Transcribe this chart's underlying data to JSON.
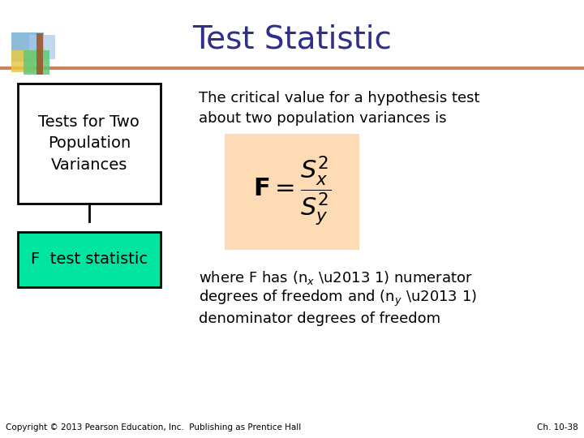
{
  "title": "Test Statistic",
  "title_color": "#2E2E8B",
  "title_fontsize": 28,
  "box1_text": "Tests for Two\nPopulation\nVariances",
  "box2_text": "F  test statistic",
  "box2_color": "#00E5A0",
  "right_text_line1": "The critical value for a hypothesis test",
  "right_text_line2": "about two population variances is",
  "formula_bg": "#FDDCB5",
  "header_line_color": "#C8845A",
  "bg_color": "#FFFFFF",
  "footer_text_left": "Copyright © 2013 Pearson Education, Inc.  Publishing as Prentice Hall",
  "footer_text_right": "Ch. 10-38",
  "icon_colors": [
    "#7BAFD4",
    "#A8C8E8",
    "#E8C84A",
    "#60C878",
    "#9B5A2A"
  ]
}
